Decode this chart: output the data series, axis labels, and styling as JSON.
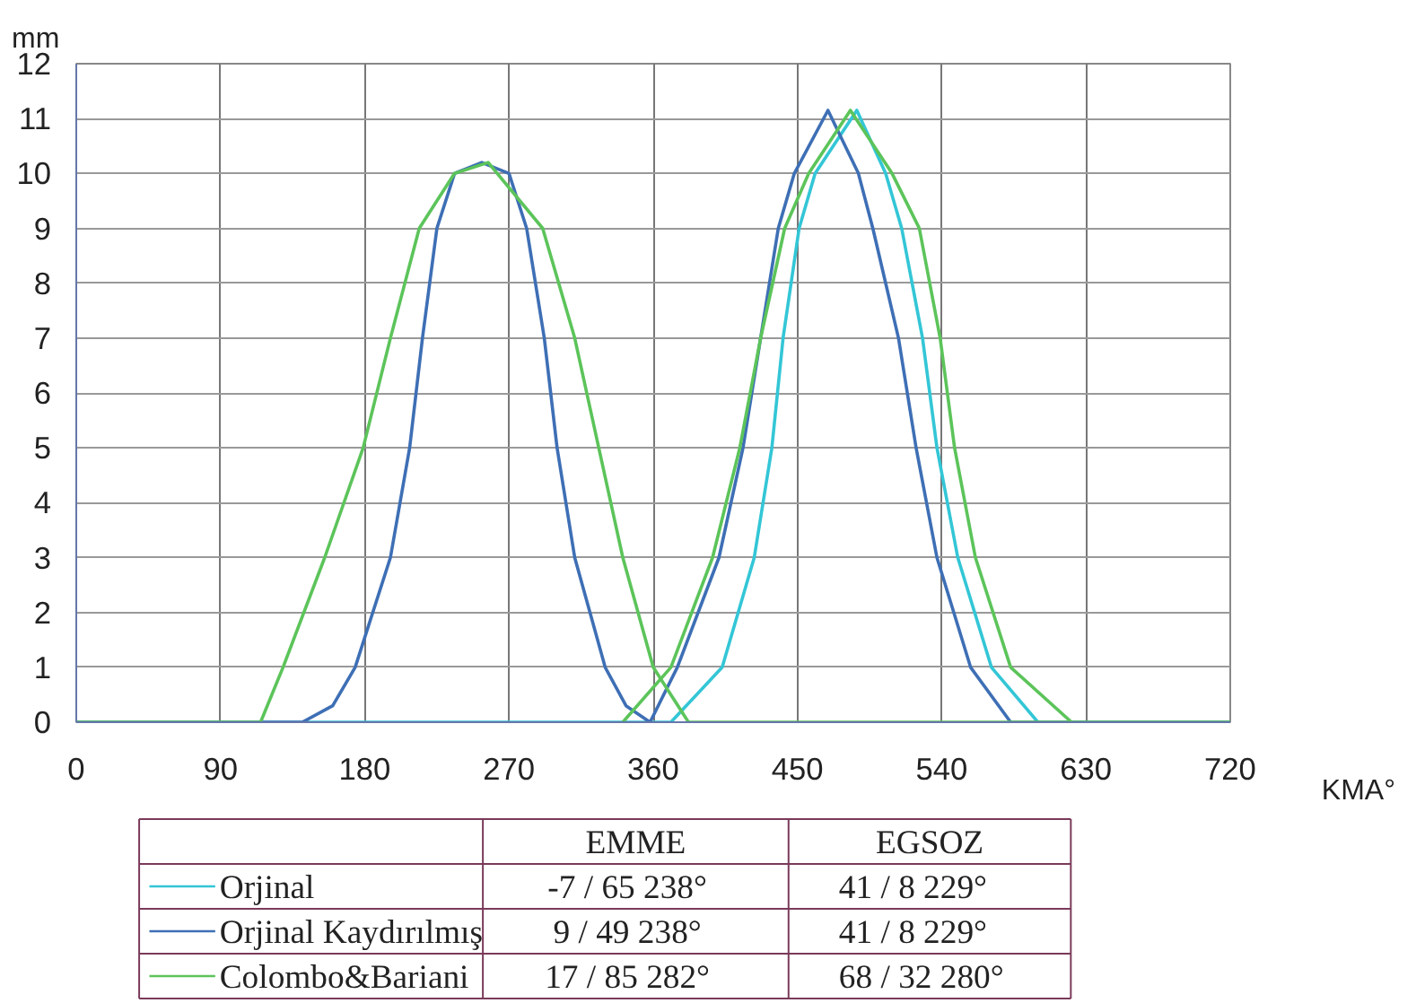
{
  "chart_data": {
    "type": "line",
    "xlabel": "KMA°",
    "ylabel": "mm",
    "xlim": [
      0,
      720
    ],
    "ylim": [
      0,
      12
    ],
    "xticks": [
      0,
      90,
      180,
      270,
      360,
      450,
      540,
      630,
      720
    ],
    "yticks": [
      0,
      1,
      2,
      3,
      4,
      5,
      6,
      7,
      8,
      9,
      10,
      11,
      12
    ],
    "grid": true,
    "legend": "bottom",
    "marker": "none",
    "line_style": "solid",
    "series": [
      {
        "name": "Orjinal",
        "color": "#33c6d6",
        "x": [
          0,
          371,
          403,
          423,
          434,
          441,
          451,
          461,
          487,
          505,
          515,
          528,
          537,
          550,
          571,
          600,
          720
        ],
        "values": [
          0,
          0,
          1,
          3,
          5,
          7,
          9,
          10,
          11.15,
          10,
          9,
          7,
          5,
          3,
          1,
          0,
          0
        ]
      },
      {
        "name": "Orjinal Kaydırılmış",
        "color": "#3e6fb5",
        "x": [
          0,
          141,
          160,
          174,
          196,
          208,
          216,
          225,
          236,
          253,
          270,
          281,
          292,
          300,
          311,
          330,
          343,
          358,
          375,
          401,
          416,
          427,
          438,
          448,
          469,
          488,
          497,
          513,
          524,
          537,
          558,
          583,
          720
        ],
        "values": [
          0,
          0,
          0.3,
          1,
          3,
          5,
          7,
          9,
          10,
          10.2,
          10,
          9,
          7,
          5,
          3,
          1,
          0.3,
          0,
          1,
          3,
          5,
          7,
          9,
          10,
          11.15,
          10,
          9,
          7,
          5,
          3,
          1,
          0,
          0
        ]
      },
      {
        "name": "Colombo&Bariani",
        "color": "#5cc45a",
        "x": [
          0,
          115,
          129,
          155,
          179,
          196,
          214,
          236,
          257,
          291,
          311,
          326,
          341,
          360,
          382,
          720
        ],
        "values": [
          0,
          0,
          1,
          3,
          5,
          7,
          9,
          10,
          10.2,
          9,
          7,
          5,
          3,
          1,
          0,
          0
        ]
      },
      {
        "color": "#5cc45a",
        "x": [
          341,
          371,
          397,
          414,
          427,
          442,
          457,
          483,
          509,
          526,
          539,
          548,
          561,
          583,
          621
        ],
        "values": [
          0,
          1,
          3,
          5,
          7,
          9,
          10,
          11.15,
          10,
          9,
          7,
          5,
          3,
          1,
          0
        ]
      }
    ],
    "annotations": [
      "EMME",
      "EGSOZ",
      "-7 / 65   238°",
      "41 /   8   229°",
      "9 / 49   238°",
      "41 /   8   229°",
      "17 / 85   282°",
      "68 / 32   280°"
    ]
  }
}
